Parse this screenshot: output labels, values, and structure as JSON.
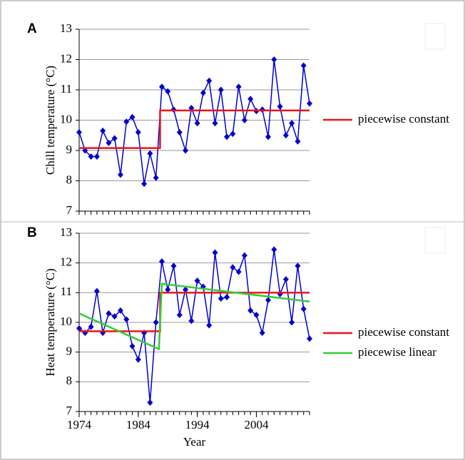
{
  "chart_data": [
    {
      "type": "line",
      "panel": "A",
      "ylabel": "Chill temperature (°C)",
      "xlim": [
        1974,
        2013
      ],
      "ylim": [
        7,
        13
      ],
      "yticks": [
        7,
        8,
        9,
        10,
        11,
        12,
        13
      ],
      "grid": true,
      "x": [
        1974,
        1975,
        1976,
        1977,
        1978,
        1979,
        1980,
        1981,
        1982,
        1983,
        1984,
        1985,
        1986,
        1987,
        1988,
        1989,
        1990,
        1991,
        1992,
        1993,
        1994,
        1995,
        1996,
        1997,
        1998,
        1999,
        2000,
        2001,
        2002,
        2003,
        2004,
        2005,
        2006,
        2007,
        2008,
        2009,
        2010,
        2011,
        2012,
        2013
      ],
      "series": [
        {
          "color": "#0000cc",
          "values": [
            9.6,
            9.0,
            8.8,
            8.8,
            9.65,
            9.25,
            9.4,
            8.2,
            9.95,
            10.1,
            9.6,
            7.9,
            8.9,
            8.1,
            11.1,
            10.95,
            10.35,
            9.6,
            9.0,
            10.4,
            9.9,
            10.9,
            11.3,
            9.9,
            11.0,
            9.45,
            9.55,
            11.1,
            10.0,
            10.7,
            10.3,
            10.35,
            9.45,
            12.0,
            10.45,
            9.5,
            9.9,
            9.3,
            11.8,
            10.55
          ]
        },
        {
          "name": "piecewise constant",
          "color": "#e8141c",
          "x": [
            1974,
            1987.7,
            1987.7,
            2013
          ],
          "values": [
            9.08,
            9.08,
            10.32,
            10.32
          ]
        }
      ]
    },
    {
      "type": "line",
      "panel": "B",
      "ylabel": "Heat temperature (°C)",
      "xlabel": "Year",
      "xlim": [
        1974,
        2013
      ],
      "xticks": [
        1974,
        1984,
        1994,
        2004
      ],
      "ylim": [
        7,
        13
      ],
      "yticks": [
        7,
        8,
        9,
        10,
        11,
        12,
        13
      ],
      "grid": true,
      "x": [
        1974,
        1975,
        1976,
        1977,
        1978,
        1979,
        1980,
        1981,
        1982,
        1983,
        1984,
        1985,
        1986,
        1987,
        1988,
        1989,
        1990,
        1991,
        1992,
        1993,
        1994,
        1995,
        1996,
        1997,
        1998,
        1999,
        2000,
        2001,
        2002,
        2003,
        2004,
        2005,
        2006,
        2007,
        2008,
        2009,
        2010,
        2011,
        2012,
        2013
      ],
      "series": [
        {
          "color": "#0000cc",
          "values": [
            9.8,
            9.65,
            9.85,
            11.05,
            9.65,
            10.3,
            10.2,
            10.4,
            10.1,
            9.2,
            8.75,
            9.65,
            7.3,
            10.0,
            12.05,
            11.1,
            11.9,
            10.25,
            11.1,
            10.05,
            11.4,
            11.2,
            9.9,
            12.35,
            10.8,
            10.85,
            11.85,
            11.7,
            12.25,
            10.4,
            10.25,
            9.65,
            10.75,
            12.45,
            10.95,
            11.45,
            10.0,
            11.9,
            10.45,
            9.45
          ]
        },
        {
          "name": "piecewise constant",
          "color": "#e8141c",
          "x": [
            1974,
            1987.7,
            1987.7,
            2013
          ],
          "values": [
            9.7,
            9.7,
            11.0,
            11.0
          ]
        },
        {
          "name": "piecewise linear",
          "color": "#33cc33",
          "x": [
            1974,
            1987.5,
            1988,
            2013
          ],
          "values": [
            10.3,
            9.1,
            11.3,
            10.7
          ]
        }
      ]
    }
  ]
}
